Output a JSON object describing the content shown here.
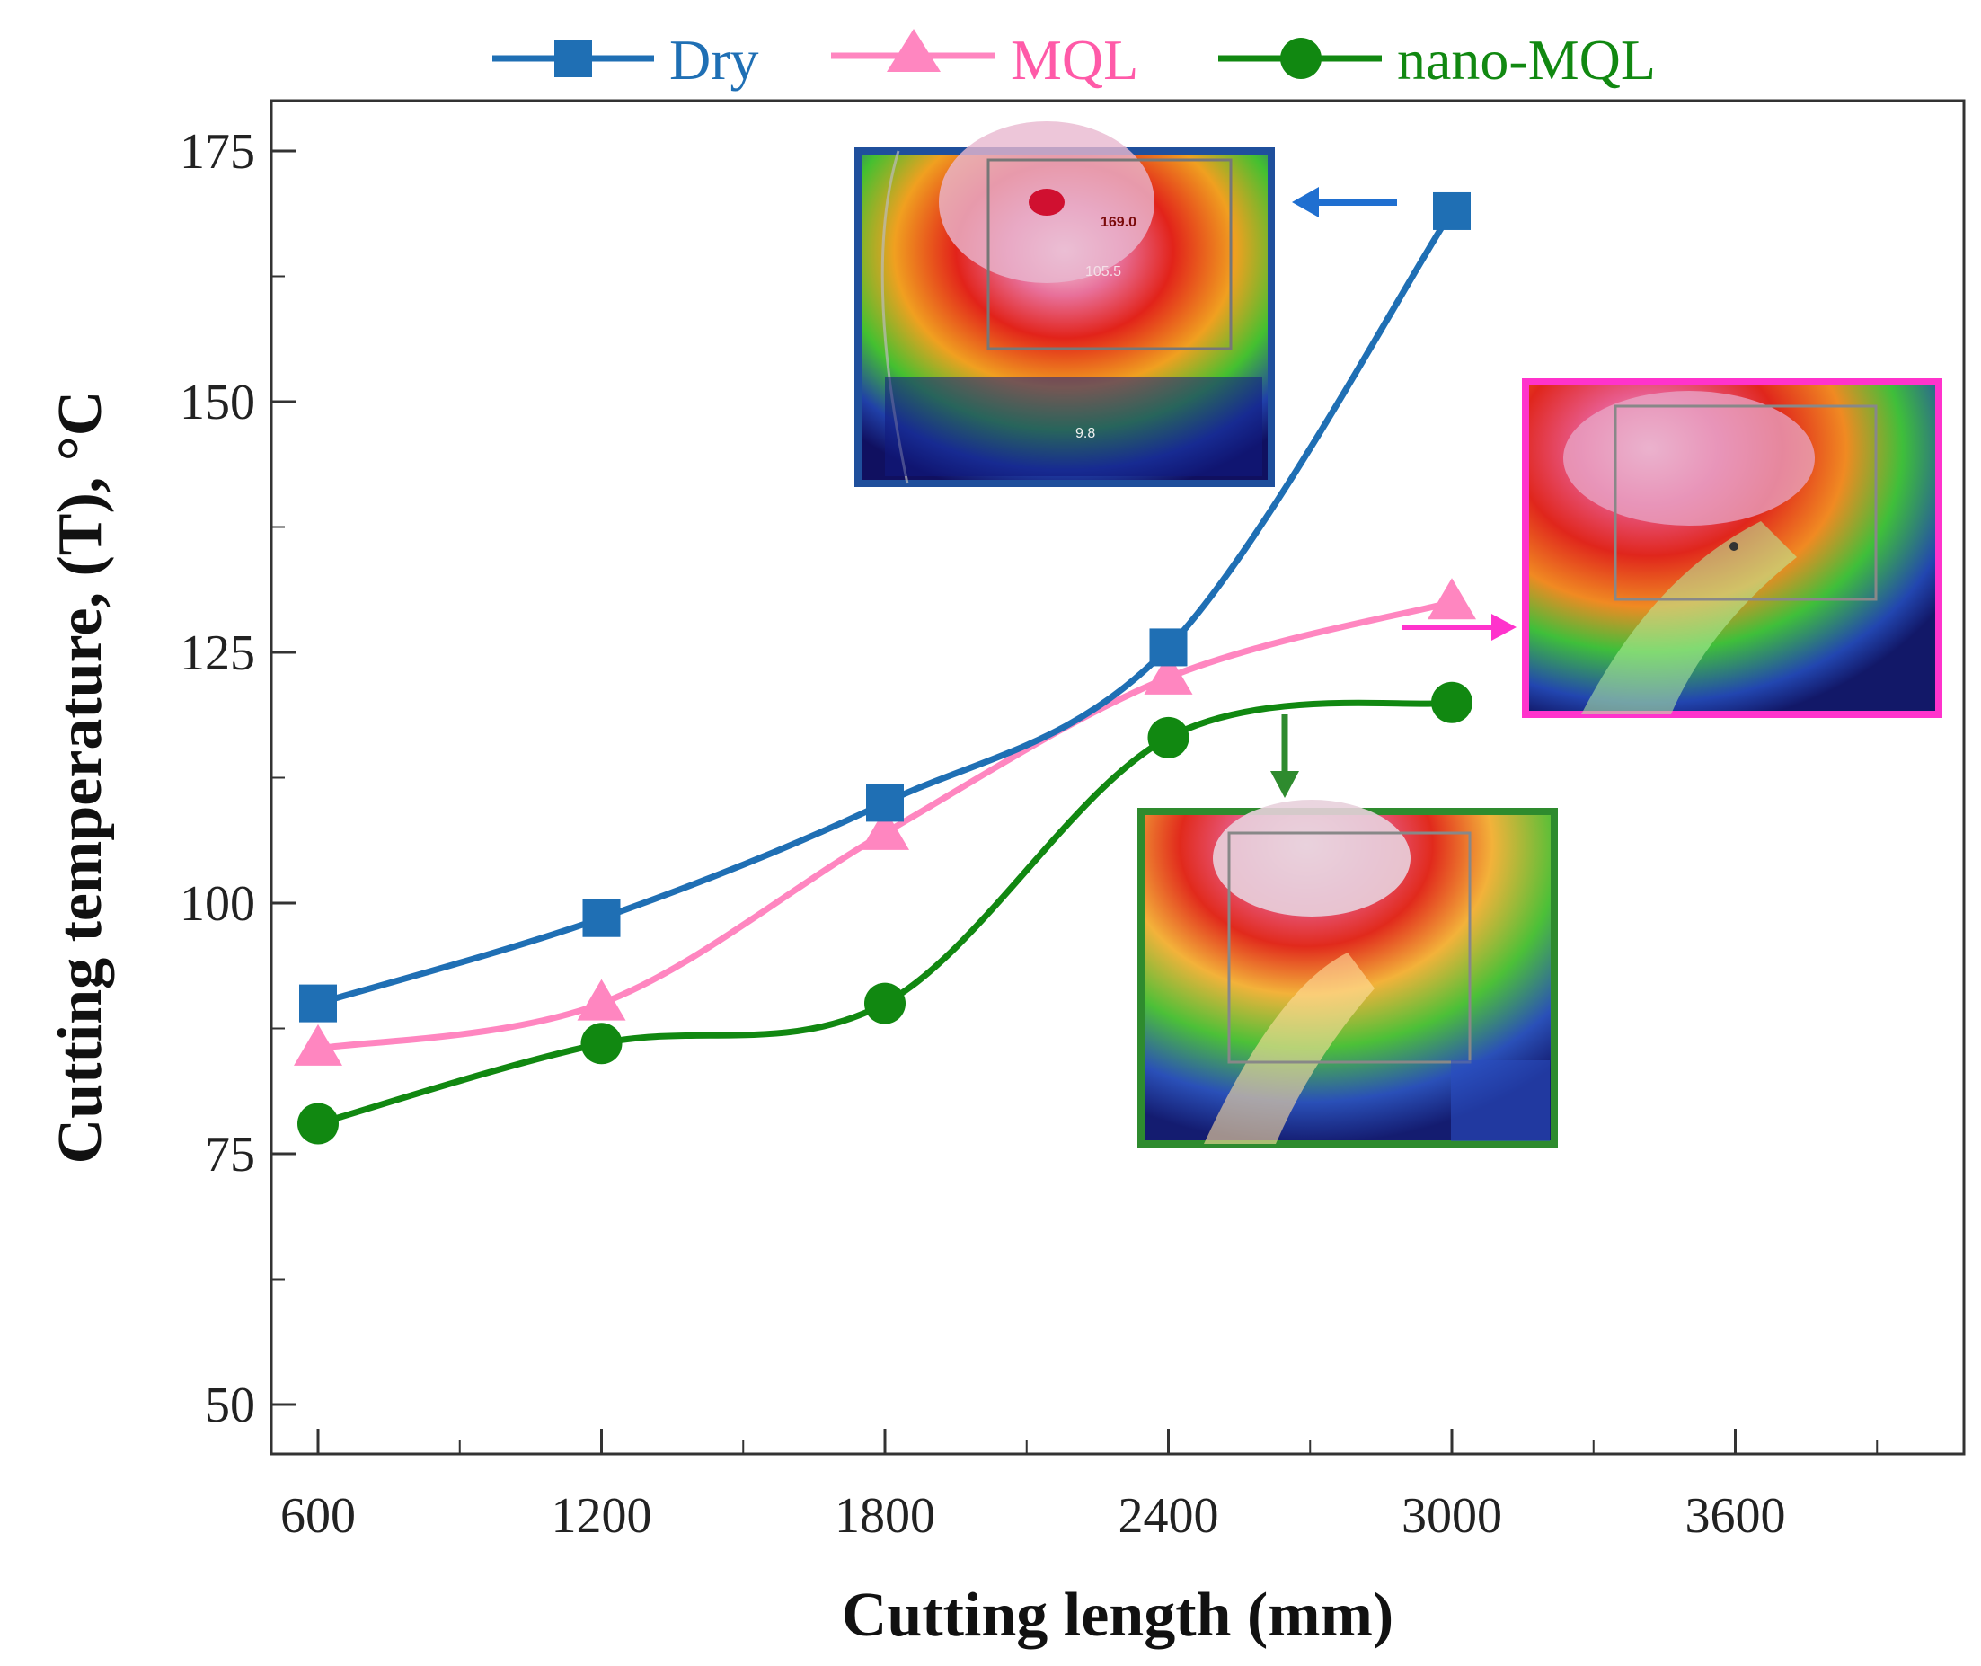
{
  "chart_data": {
    "type": "line",
    "title": "",
    "xlabel": "Cutting length (mm)",
    "ylabel": "Cutting temperature, (T), °C",
    "x": [
      600,
      1200,
      1800,
      2400,
      3000
    ],
    "xticks": [
      600,
      1200,
      1800,
      2400,
      3000,
      3600
    ],
    "xlim": [
      500,
      4200
    ],
    "yticks": [
      50,
      75,
      100,
      125,
      150,
      175
    ],
    "ylim": [
      45,
      180
    ],
    "grid": false,
    "legend_position": "top",
    "series": [
      {
        "name": "Dry",
        "values": [
          90,
          98.5,
          110,
          125.5,
          169
        ],
        "color": "#1f6fb4",
        "marker": "square"
      },
      {
        "name": "MQL",
        "values": [
          85.5,
          90,
          107,
          122.5,
          130
        ],
        "color": "#ff86c0",
        "marker": "triangle"
      },
      {
        "name": "nano-MQL",
        "values": [
          78,
          86,
          90,
          116.5,
          120
        ],
        "color": "#118811",
        "marker": "circle"
      }
    ],
    "insets": [
      {
        "name": "dry-thermal-image",
        "series": "Dry",
        "border_color": "#1f4f9c",
        "readouts": [
          "169.0",
          "105.5",
          "9.8"
        ]
      },
      {
        "name": "mql-thermal-image",
        "series": "MQL",
        "border_color": "#ff33cc"
      },
      {
        "name": "nano-mql-thermal-image",
        "series": "nano-MQL",
        "border_color": "#2e8b2e"
      }
    ]
  }
}
